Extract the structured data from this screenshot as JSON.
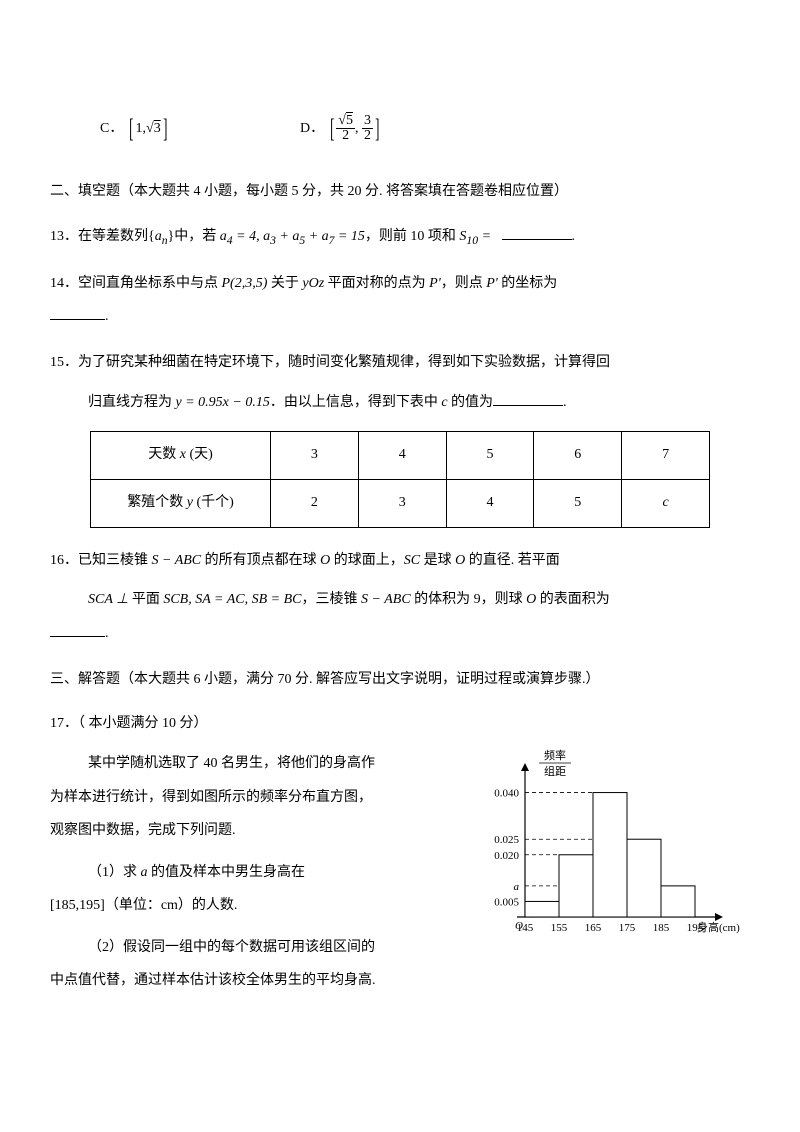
{
  "options": {
    "c_label": "C．",
    "c_content": "[1, √3]",
    "d_label": "D．",
    "d_frac1_num": "√5",
    "d_frac1_den": "2",
    "d_frac2_num": "3",
    "d_frac2_den": "2"
  },
  "section2": {
    "header": "二、填空题（本大题共 4 小题，每小题 5 分，共 20 分. 将答案填在答题卷相应位置）"
  },
  "q13": {
    "num": "13．",
    "text1": "在等差数列",
    "seq": "{aₙ}",
    "text2": "中，若",
    "cond": "a₄ = 4, a₃ + a₅ + a₇ = 15",
    "text3": "，则前 10 项和",
    "s10": "S₁₀ =",
    "period": "."
  },
  "q14": {
    "num": "14．",
    "text1": "空间直角坐标系中与点",
    "point": "P(2,3,5)",
    "text2": "关于",
    "plane": "yOz",
    "text3": "平面对称的点为",
    "pprime1": "P'",
    "text4": "，则点",
    "pprime2": "P'",
    "text5": "的坐标为",
    "period": "."
  },
  "q15": {
    "num": "15．",
    "text1": "为了研究某种细菌在特定环境下，随时间变化繁殖规律，得到如下实验数据，计算得回",
    "text2": "归直线方程为",
    "eq": "y = 0.95x − 0.15",
    "text3": "．由以上信息，得到下表中",
    "cvar": "c",
    "text4": "的值为",
    "period": ".",
    "table": {
      "row1_header": "天数 x (天)",
      "row1": [
        "3",
        "4",
        "5",
        "6",
        "7"
      ],
      "row2_header": "繁殖个数 y (千个)",
      "row2": [
        "2",
        "3",
        "4",
        "5",
        "c"
      ]
    }
  },
  "q16": {
    "num": "16．",
    "text1": "已知三棱锥",
    "sabc1": "S − ABC",
    "text2": "的所有顶点都在球",
    "o1": "O",
    "text3": "的球面上，",
    "sc": "SC",
    "text4": "是球",
    "o2": "O",
    "text5": "的直径. 若平面",
    "line2a": "SCA ⊥",
    "line2b": "平面",
    "line2c": "SCB, SA = AC, SB = BC",
    "text6": "，三棱锥",
    "sabc2": "S − ABC",
    "text7": "的体积为 9，则球",
    "o3": "O",
    "text8": "的表面积为",
    "period": "."
  },
  "section3": {
    "header": "三、解答题（本大题共 6 小题，满分 70 分. 解答应写出文字说明，证明过程或演算步骤.）"
  },
  "q17": {
    "num": "17．",
    "title": "（ 本小题满分 10 分）",
    "p1": "某中学随机选取了 40 名男生，将他们的身高作",
    "p2": "为样本进行统计，得到如图所示的频率分布直方图，",
    "p3": "观察图中数据，完成下列问题.",
    "sub1_label": "（1）求",
    "sub1_a": "a",
    "sub1_text": "的值及样本中男生身高在",
    "sub1_range": "[185,195]（单位：cm）的人数.",
    "sub2": "（2）假设同一组中的每个数据可用该组区间的",
    "sub2b": "中点值代替，通过样本估计该校全体男生的平均身高."
  },
  "chart": {
    "ylabel_top": "频率",
    "ylabel_bottom": "组距",
    "yticks": [
      "0.040",
      "0.025",
      "0.020",
      "0.005"
    ],
    "a_label": "a",
    "xticks": [
      "145",
      "155",
      "165",
      "175",
      "185",
      "195"
    ],
    "xlabel": "身高(cm)",
    "origin": "O",
    "bar_heights": [
      0.005,
      0.02,
      0.04,
      0.025,
      0.01
    ],
    "bar_color": "#ffffff",
    "line_color": "#000000",
    "dash": "4,3",
    "axis_font_size": 11
  }
}
